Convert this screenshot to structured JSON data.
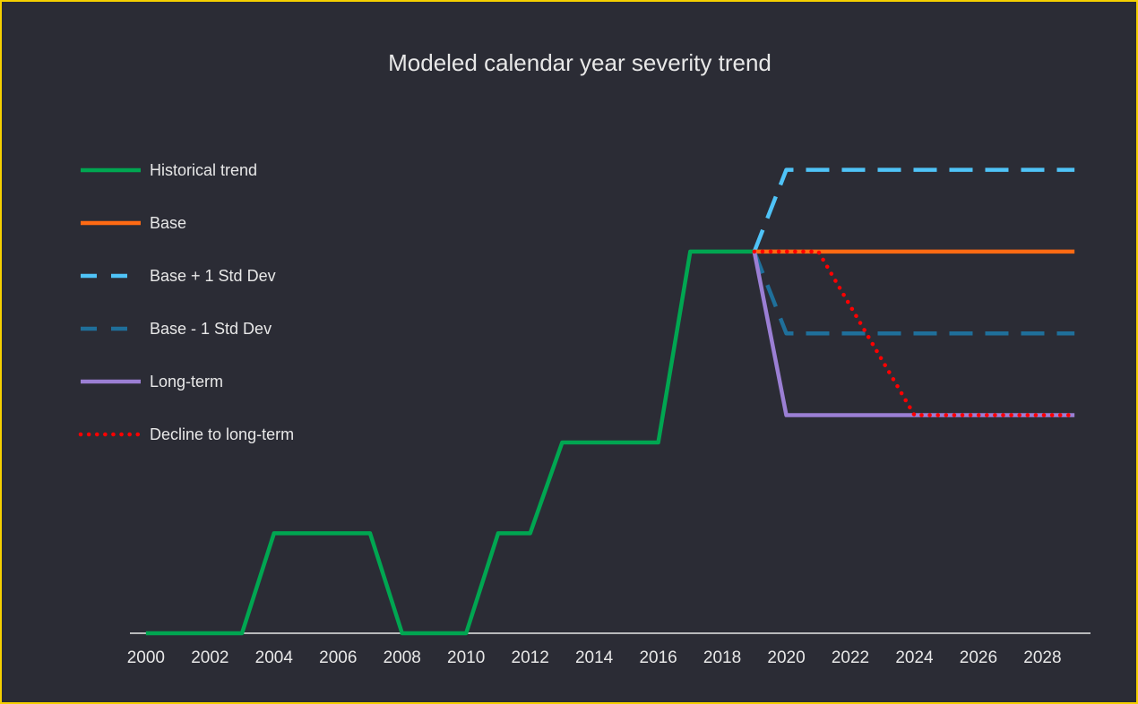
{
  "chart_data": {
    "type": "line",
    "title": "Modeled calendar year severity trend",
    "x": [
      2000,
      2001,
      2002,
      2003,
      2004,
      2005,
      2006,
      2007,
      2008,
      2009,
      2010,
      2011,
      2012,
      2013,
      2014,
      2015,
      2016,
      2017,
      2018,
      2019,
      2020,
      2021,
      2022,
      2023,
      2024,
      2025,
      2026,
      2027,
      2028,
      2029
    ],
    "xlim": [
      1999.5,
      2029.5
    ],
    "xticks": [
      2000,
      2002,
      2004,
      2006,
      2008,
      2010,
      2012,
      2014,
      2016,
      2018,
      2020,
      2022,
      2024,
      2026,
      2028
    ],
    "ylim": [
      0,
      5.5
    ],
    "legend": "left",
    "series": [
      {
        "name": "Historical trend",
        "color": "#00a651",
        "dash": "solid",
        "values": [
          0,
          0,
          0,
          0,
          1.1,
          1.1,
          1.1,
          1.1,
          0,
          0,
          0,
          1.1,
          1.1,
          2.1,
          2.1,
          2.1,
          2.1,
          4.2,
          4.2,
          4.2,
          null,
          null,
          null,
          null,
          null,
          null,
          null,
          null,
          null,
          null
        ]
      },
      {
        "name": "Base",
        "color": "#ff6a13",
        "dash": "solid",
        "values": [
          null,
          null,
          null,
          null,
          null,
          null,
          null,
          null,
          null,
          null,
          null,
          null,
          null,
          null,
          null,
          null,
          null,
          null,
          null,
          4.2,
          4.2,
          4.2,
          4.2,
          4.2,
          4.2,
          4.2,
          4.2,
          4.2,
          4.2,
          4.2
        ]
      },
      {
        "name": "Base + 1 Std Dev",
        "color": "#4fc3f7",
        "dash": "dashed",
        "values": [
          null,
          null,
          null,
          null,
          null,
          null,
          null,
          null,
          null,
          null,
          null,
          null,
          null,
          null,
          null,
          null,
          null,
          null,
          null,
          4.2,
          5.1,
          5.1,
          5.1,
          5.1,
          5.1,
          5.1,
          5.1,
          5.1,
          5.1,
          5.1
        ]
      },
      {
        "name": "Base - 1 Std Dev",
        "color": "#1f6f9a",
        "dash": "dashed",
        "values": [
          null,
          null,
          null,
          null,
          null,
          null,
          null,
          null,
          null,
          null,
          null,
          null,
          null,
          null,
          null,
          null,
          null,
          null,
          null,
          4.2,
          3.3,
          3.3,
          3.3,
          3.3,
          3.3,
          3.3,
          3.3,
          3.3,
          3.3,
          3.3
        ]
      },
      {
        "name": "Long-term",
        "color": "#9b7fd4",
        "dash": "solid",
        "values": [
          null,
          null,
          null,
          null,
          null,
          null,
          null,
          null,
          null,
          null,
          null,
          null,
          null,
          null,
          null,
          null,
          null,
          null,
          null,
          4.2,
          2.4,
          2.4,
          2.4,
          2.4,
          2.4,
          2.4,
          2.4,
          2.4,
          2.4,
          2.4
        ]
      },
      {
        "name": "Decline to long-term",
        "color": "#ff0000",
        "dash": "dotted",
        "values": [
          null,
          null,
          null,
          null,
          null,
          null,
          null,
          null,
          null,
          null,
          null,
          null,
          null,
          null,
          null,
          null,
          null,
          null,
          null,
          4.2,
          4.2,
          4.2,
          3.6,
          3.0,
          2.4,
          2.4,
          2.4,
          2.4,
          2.4,
          2.4
        ]
      }
    ]
  }
}
